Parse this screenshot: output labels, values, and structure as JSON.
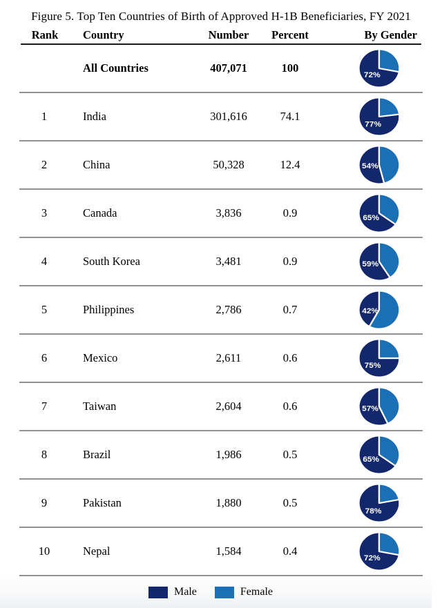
{
  "chart_data": {
    "type": "table",
    "title": "Figure 5. Top Ten Countries of Birth of Approved H-1B Beneficiaries, FY 2021",
    "columns": [
      "Rank",
      "Country",
      "Number",
      "Percent",
      "By Gender"
    ],
    "rows": [
      {
        "rank": "",
        "country": "All Countries",
        "number": "407,071",
        "percent": "100",
        "male_pct": 72,
        "female_pct": 28,
        "pie_label": "72%",
        "bold": true
      },
      {
        "rank": "1",
        "country": "India",
        "number": "301,616",
        "percent": "74.1",
        "male_pct": 77,
        "female_pct": 23,
        "pie_label": "77%",
        "bold": false
      },
      {
        "rank": "2",
        "country": "China",
        "number": "50,328",
        "percent": "12.4",
        "male_pct": 54,
        "female_pct": 46,
        "pie_label": "54%",
        "bold": false
      },
      {
        "rank": "3",
        "country": "Canada",
        "number": "3,836",
        "percent": "0.9",
        "male_pct": 65,
        "female_pct": 35,
        "pie_label": "65%",
        "bold": false
      },
      {
        "rank": "4",
        "country": "South Korea",
        "number": "3,481",
        "percent": "0.9",
        "male_pct": 59,
        "female_pct": 41,
        "pie_label": "59%",
        "bold": false
      },
      {
        "rank": "5",
        "country": "Philippines",
        "number": "2,786",
        "percent": "0.7",
        "male_pct": 42,
        "female_pct": 58,
        "pie_label": "42%",
        "bold": false
      },
      {
        "rank": "6",
        "country": "Mexico",
        "number": "2,611",
        "percent": "0.6",
        "male_pct": 75,
        "female_pct": 25,
        "pie_label": "75%",
        "bold": false
      },
      {
        "rank": "7",
        "country": "Taiwan",
        "number": "2,604",
        "percent": "0.6",
        "male_pct": 57,
        "female_pct": 43,
        "pie_label": "57%",
        "bold": false
      },
      {
        "rank": "8",
        "country": "Brazil",
        "number": "1,986",
        "percent": "0.5",
        "male_pct": 65,
        "female_pct": 35,
        "pie_label": "65%",
        "bold": false
      },
      {
        "rank": "9",
        "country": "Pakistan",
        "number": "1,880",
        "percent": "0.5",
        "male_pct": 78,
        "female_pct": 22,
        "pie_label": "78%",
        "bold": false
      },
      {
        "rank": "10",
        "country": "Nepal",
        "number": "1,584",
        "percent": "0.4",
        "male_pct": 72,
        "female_pct": 28,
        "pie_label": "72%",
        "bold": false
      }
    ],
    "legend": [
      {
        "label": "Male",
        "color": "#13276c"
      },
      {
        "label": "Female",
        "color": "#1b6fb5"
      }
    ],
    "colors": {
      "male": "#13276c",
      "female": "#1b6fb5",
      "slice_gap": "#ffffff",
      "divider": "#8f9093",
      "header_rule": "#1b1b1b",
      "pie_label_text": "#ffffff"
    },
    "pie_start": "female slice starts at 12 o'clock and sweeps clockwise"
  }
}
